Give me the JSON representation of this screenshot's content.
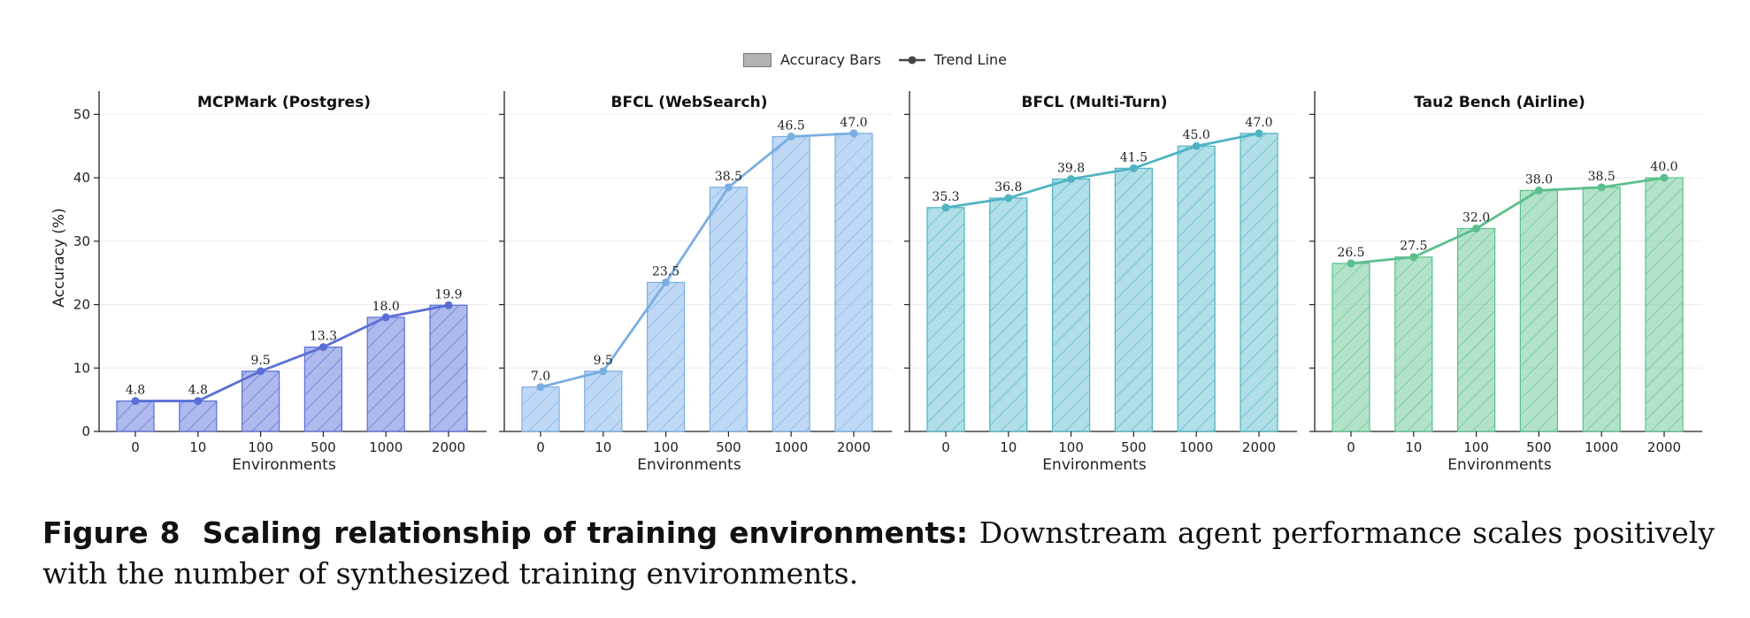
{
  "legend": {
    "bars_label": "Accuracy Bars",
    "line_label": "Trend Line"
  },
  "caption": {
    "figure_label": "Figure 8",
    "title": "Scaling relationship of training environments:",
    "text": "Downstream agent performance scales positively with the number of synthesized training environments."
  },
  "chart_data": [
    {
      "type": "bar",
      "title": "MCPMark (Postgres)",
      "xlabel": "Environments",
      "ylabel": "Accuracy (%)",
      "ylim": [
        0,
        52
      ],
      "yticks": [
        0,
        10,
        20,
        30,
        40,
        50
      ],
      "categories": [
        "0",
        "10",
        "100",
        "500",
        "1000",
        "2000"
      ],
      "values": [
        4.8,
        4.8,
        9.5,
        13.3,
        18.0,
        19.9
      ],
      "data_labels": [
        "4.8",
        "4.8",
        "9.5",
        "13.3",
        "18.0",
        "19.9"
      ],
      "color": "#6b7fde",
      "line_color": "#5a6fd6",
      "grid": true
    },
    {
      "type": "bar",
      "title": "BFCL (WebSearch)",
      "xlabel": "Environments",
      "ylabel": "",
      "ylim": [
        0,
        52
      ],
      "yticks": [
        0,
        10,
        20,
        30,
        40,
        50
      ],
      "categories": [
        "0",
        "10",
        "100",
        "500",
        "1000",
        "2000"
      ],
      "values": [
        7.0,
        9.5,
        23.5,
        38.5,
        46.5,
        47.0
      ],
      "data_labels": [
        "7.0",
        "9.5",
        "23.5",
        "38.5",
        "46.5",
        "47.0"
      ],
      "color": "#8ab8ec",
      "line_color": "#7aaee2",
      "grid": true
    },
    {
      "type": "bar",
      "title": "BFCL (Multi-Turn)",
      "xlabel": "Environments",
      "ylabel": "",
      "ylim": [
        0,
        52
      ],
      "yticks": [
        0,
        10,
        20,
        30,
        40,
        50
      ],
      "categories": [
        "0",
        "10",
        "100",
        "500",
        "1000",
        "2000"
      ],
      "values": [
        35.3,
        36.8,
        39.8,
        41.5,
        45.0,
        47.0
      ],
      "data_labels": [
        "35.3",
        "36.8",
        "39.8",
        "41.5",
        "45.0",
        "47.0"
      ],
      "color": "#6ec4d3",
      "line_color": "#4fb3c3",
      "grid": true
    },
    {
      "type": "bar",
      "title": "Tau2 Bench (Airline)",
      "xlabel": "Environments",
      "ylabel": "",
      "ylim": [
        0,
        52
      ],
      "yticks": [
        0,
        10,
        20,
        30,
        40,
        50
      ],
      "categories": [
        "0",
        "10",
        "100",
        "500",
        "1000",
        "2000"
      ],
      "values": [
        26.5,
        27.5,
        32.0,
        38.0,
        38.5,
        40.0
      ],
      "data_labels": [
        "26.5",
        "27.5",
        "32.0",
        "38.0",
        "38.5",
        "40.0"
      ],
      "color": "#72cc9f",
      "line_color": "#5bbf8c",
      "grid": true
    }
  ]
}
